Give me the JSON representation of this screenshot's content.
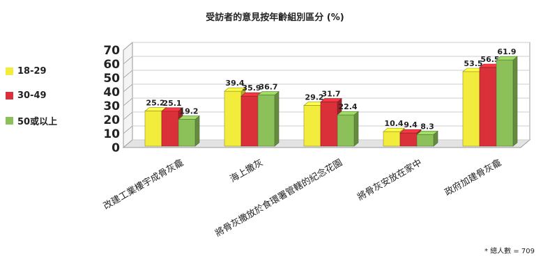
{
  "chart_data": {
    "type": "bar",
    "title": "受訪者的意見按年齡組別區分 (%)",
    "categories": [
      "改建工業樓宇成骨灰龕",
      "海上撒灰",
      "將骨灰撒放於食環署管轄的紀念花園",
      "將骨灰安放在家中",
      "政府加建骨灰龕"
    ],
    "series": [
      {
        "name": "18-29",
        "color": "#f2ec3c",
        "values": [
          25.2,
          39.4,
          29.2,
          10.4,
          53.5
        ]
      },
      {
        "name": "30-49",
        "color": "#d9303a",
        "values": [
          25.1,
          35.9,
          31.7,
          9.4,
          56.5
        ]
      },
      {
        "name": "50或以上",
        "color": "#8cc159",
        "values": [
          19.2,
          36.7,
          22.4,
          8.3,
          61.9
        ]
      }
    ],
    "ylim": [
      0,
      70
    ],
    "yticks": [
      0,
      10,
      20,
      30,
      40,
      50,
      60,
      70
    ],
    "legend_position": "left",
    "note": "* 總人數 = 709"
  }
}
